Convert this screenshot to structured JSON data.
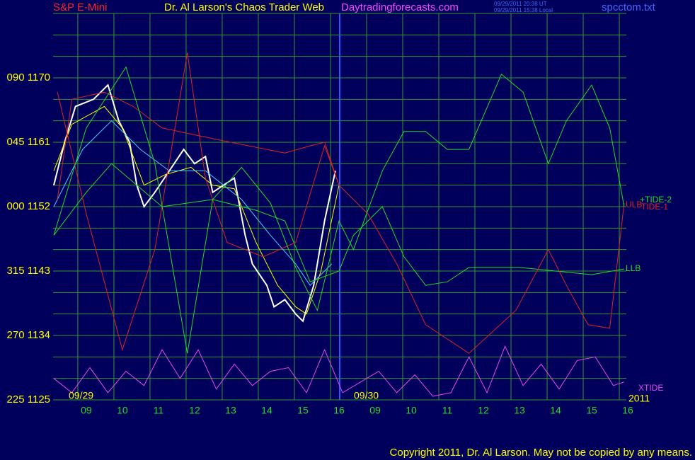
{
  "chart_data": {
    "type": "line",
    "subtitle": "S&P E-Mini",
    "title": "Dr. Al Larson's Chaos Trader Web",
    "website": "Daytradingforecasts.com",
    "timestamps": [
      "09/29/2011 20:38 UT",
      "09/29/2011 15:38 Local"
    ],
    "filename": "spcctom.txt",
    "date_labels": [
      "09/29",
      "09/30",
      "2011"
    ],
    "copyright": "Copyright 2011, Dr. Al Larson. May not be copied by any means.",
    "grid": true,
    "xlim": [
      0.08,
      15.96
    ],
    "ylim": [
      1125,
      1179
    ],
    "xticks": [
      {
        "value": 1,
        "label": "09"
      },
      {
        "value": 2,
        "label": "10"
      },
      11,
      12,
      13,
      14,
      15,
      16,
      {
        "value": 9,
        "label": "09"
      },
      {
        "value": 10,
        "label": "10"
      },
      {
        "value": 11,
        "label": "11"
      },
      {
        "value": 12,
        "label": "12"
      },
      {
        "value": 13,
        "label": "13"
      },
      {
        "value": 14,
        "label": "14"
      },
      {
        "value": 15,
        "label": "15"
      },
      {
        "value": 16,
        "label": "16"
      }
    ],
    "yticks": [
      {
        "value": 1125,
        "label": "225 1125"
      },
      {
        "value": 1134,
        "label": "270 1134"
      },
      {
        "value": 1143,
        "label": "315 1143"
      },
      {
        "value": 1152,
        "label": "000 1152"
      },
      {
        "value": 1161,
        "label": "045 1161"
      },
      {
        "value": 1170,
        "label": "090 1170"
      }
    ],
    "ygrid": [
      1128,
      1131,
      1134,
      1137,
      1140,
      1143,
      1146,
      1149,
      1152,
      1155,
      1158,
      1161,
      1164,
      1167,
      1170,
      1173,
      1176,
      1179
    ],
    "series": [
      {
        "color": "#ffffff",
        "x": [
          0.1,
          0.4,
          0.7,
          1.2,
          1.6,
          1.9,
          2.2,
          2.4,
          2.6,
          2.9,
          3.3,
          3.7,
          4.0,
          4.3,
          4.5,
          4.8,
          5.1,
          5.4,
          5.6,
          6.0,
          6.2,
          6.5,
          6.8,
          7.0,
          7.3,
          7.6,
          7.9
        ],
        "values": [
          1155,
          1161,
          1166,
          1167,
          1169,
          1164,
          1161,
          1155,
          1152,
          1154,
          1157,
          1160,
          1158,
          1159,
          1154,
          1155,
          1156,
          1148,
          1144,
          1141,
          1138,
          1139,
          1137,
          1136,
          1141,
          1150,
          1157
        ]
      },
      {
        "color": "#ffff00",
        "x": [
          0.1,
          0.6,
          1.5,
          2.0,
          2.6,
          3.2,
          3.9,
          4.5,
          5.1,
          5.7,
          6.3,
          6.8,
          7.1,
          7.5,
          8.0
        ],
        "values": [
          1157,
          1163.5,
          1166,
          1163,
          1155,
          1156.5,
          1157.5,
          1155,
          1154.5,
          1147,
          1141,
          1138,
          1137,
          1143,
          1155
        ]
      },
      {
        "color": "#44ccff",
        "x": [
          0.1,
          0.9,
          1.7,
          2.5,
          3.3,
          4.3,
          5.3,
          6.1,
          6.8,
          7.2,
          7.8
        ],
        "values": [
          1152,
          1160,
          1164,
          1160,
          1157,
          1157,
          1153,
          1148,
          1144,
          1141,
          1144
        ]
      },
      {
        "name": "ULB",
        "color": "#dd2222",
        "x": [
          0.2,
          0.6,
          1.5,
          2.3,
          3.1,
          4.5,
          5.5,
          6.5,
          7.2,
          7.6,
          8.0
        ],
        "values": [
          1153,
          1167,
          1168,
          1166,
          1163,
          1161.5,
          1160.5,
          1159.5,
          1160.5,
          1161,
          1155
        ]
      },
      {
        "name": "LLB",
        "color": "#22dd22",
        "x": [
          0.1,
          1.0,
          1.7,
          3.1,
          4.5,
          5.7,
          6.5,
          7.2,
          8.0,
          8.4,
          9.2,
          9.8,
          10.4,
          11.0,
          11.6,
          13.0,
          14.0,
          15.0,
          15.9
        ],
        "values": [
          1148,
          1154,
          1158,
          1152,
          1153,
          1151.5,
          1150,
          1141.5,
          1143,
          1148,
          1152,
          1145,
          1141,
          1141.5,
          1143.5,
          1143.5,
          1143,
          1142.5,
          1143.3
        ]
      },
      {
        "name": "TIDE-1",
        "color": "#dd2222",
        "x": [
          0.2,
          1.0,
          2.0,
          2.9,
          3.8,
          4.3,
          4.9,
          5.9,
          6.8,
          7.6,
          8.0,
          8.8,
          9.6,
          10.4,
          11.6,
          12.9,
          13.8,
          14.3,
          14.9,
          15.5,
          15.9
        ],
        "values": [
          1168,
          1151,
          1132,
          1146,
          1173.5,
          1156,
          1147,
          1145,
          1147,
          1160.5,
          1155,
          1151,
          1144,
          1135.5,
          1131.5,
          1137.5,
          1146,
          1141,
          1135.5,
          1135,
          1152.5
        ]
      },
      {
        "name": "+TIDE-2",
        "color": "#22dd22",
        "x": [
          0.1,
          1.0,
          2.1,
          2.9,
          3.8,
          4.5,
          5.3,
          6.1,
          6.8,
          7.4,
          8.0,
          8.4,
          9.2,
          9.8,
          10.4,
          11.0,
          11.6,
          12.5,
          13.1,
          13.8,
          14.3,
          15.0,
          15.5,
          15.9
        ],
        "values": [
          1148,
          1163,
          1171.5,
          1158,
          1131.5,
          1153,
          1157.5,
          1152.5,
          1143.5,
          1137.5,
          1150,
          1146,
          1157,
          1162.5,
          1162.5,
          1160,
          1160,
          1170.5,
          1168,
          1158,
          1164,
          1169,
          1163,
          1152
        ]
      },
      {
        "name": "XTIDE",
        "color": "#ee44ee",
        "x": [
          0.1,
          0.6,
          1.1,
          1.6,
          2.1,
          2.6,
          3.1,
          3.6,
          4.1,
          4.6,
          5.1,
          5.6,
          6.1,
          6.6,
          7.1,
          7.6,
          8.1,
          8.6,
          9.1,
          9.6,
          10.1,
          10.6,
          11.1,
          11.6,
          12.1,
          12.6,
          13.1,
          13.6,
          14.1,
          14.6,
          15.1,
          15.6,
          15.9
        ],
        "values": [
          1128,
          1126,
          1129.5,
          1126,
          1129,
          1127,
          1132,
          1128,
          1132,
          1126.5,
          1130,
          1127,
          1129,
          1129.5,
          1126,
          1132,
          1126,
          1127.5,
          1129,
          1126,
          1128.5,
          1125.5,
          1126,
          1131,
          1126,
          1132.5,
          1127,
          1130,
          1126.5,
          1130.5,
          1131,
          1127,
          1127.5
        ]
      }
    ]
  }
}
